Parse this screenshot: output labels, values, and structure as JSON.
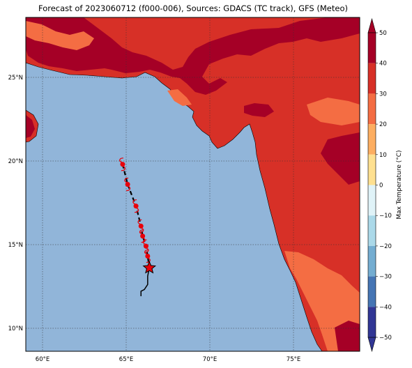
{
  "title": "Forecast of 2023060712 (f000-006), Sources: GDACS (TC track), GFS (Meteo)",
  "lon_labels": [
    "60°E",
    "65°E",
    "70°E",
    "75°E"
  ],
  "lat_labels": [
    "25°N",
    "20°N",
    "15°N",
    "10°N"
  ],
  "colorbar": {
    "label": "Max Temperature (°C)",
    "ticks": [
      "50",
      "40",
      "30",
      "20",
      "10",
      "0",
      "−10",
      "−20",
      "−30",
      "−40",
      "−50"
    ],
    "colors": [
      "#a50026",
      "#d73027",
      "#f46d43",
      "#fdae61",
      "#fee090",
      "#ffffbf",
      "#e0f3f8",
      "#abd9e9",
      "#74add1",
      "#4575b4",
      "#313695"
    ]
  },
  "colors": {
    "ocean": "#91b5d9",
    "land_hot": "#a50026",
    "land_warm": "#d73027",
    "land_mild": "#f46d43",
    "track": "#000000",
    "storm": "#e8000b"
  },
  "track": {
    "forecast_points": [
      {
        "lon": 64.8,
        "lat": 19.8
      },
      {
        "lon": 65.1,
        "lat": 18.6
      },
      {
        "lon": 65.6,
        "lat": 17.3
      },
      {
        "lon": 65.9,
        "lat": 16.1
      },
      {
        "lon": 66.0,
        "lat": 15.5
      },
      {
        "lon": 66.2,
        "lat": 14.9
      },
      {
        "lon": 66.3,
        "lat": 14.3
      }
    ],
    "current_position": {
      "lon": 66.4,
      "lat": 13.6
    },
    "past_points": [
      {
        "lon": 66.4,
        "lat": 13.6
      },
      {
        "lon": 66.3,
        "lat": 13.1
      },
      {
        "lon": 66.3,
        "lat": 12.6
      },
      {
        "lon": 66.1,
        "lat": 12.3
      },
      {
        "lon": 65.9,
        "lat": 12.2
      },
      {
        "lon": 65.9,
        "lat": 11.9
      }
    ]
  }
}
